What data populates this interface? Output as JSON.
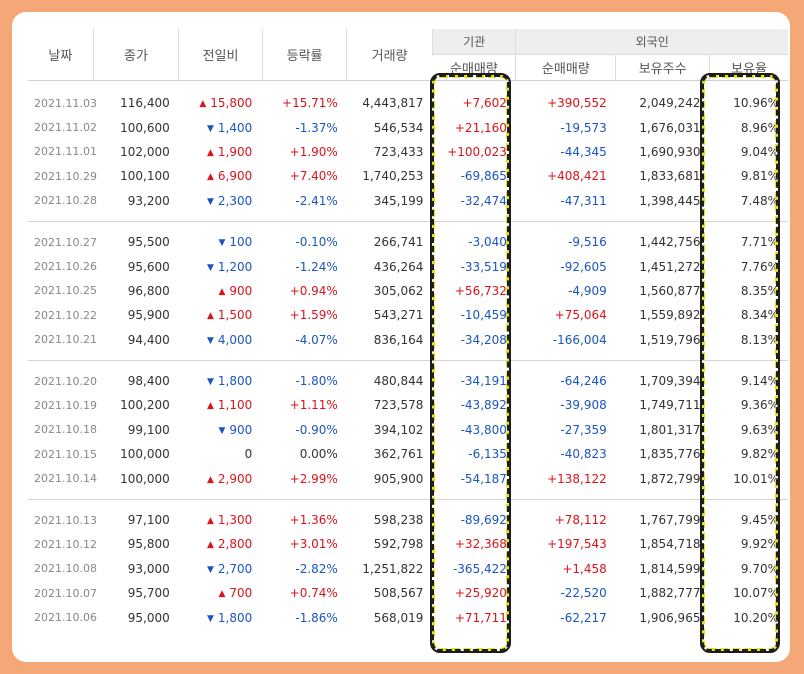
{
  "headers": {
    "date": "날짜",
    "close": "종가",
    "change": "전일비",
    "rate": "등락률",
    "volume": "거래량",
    "institution": "기관",
    "foreign": "외국인",
    "inst_net": "순매매량",
    "foreign_net": "순매매량",
    "foreign_shares": "보유주수",
    "foreign_ratio": "보유율"
  },
  "colors": {
    "up": "#d9141b",
    "down": "#1a55c2",
    "highlight": "#e8e21a",
    "background": "#f4a878"
  },
  "groups": [
    [
      {
        "date": "2021.11.03",
        "close": "116,400",
        "dir": "up",
        "change": "15,800",
        "rate": "+15.71%",
        "volume": "4,443,817",
        "inst": "+7,602",
        "foreign": "+390,552",
        "shares": "2,049,242",
        "ratio": "10.96%"
      },
      {
        "date": "2021.11.02",
        "close": "100,600",
        "dir": "down",
        "change": "1,400",
        "rate": "-1.37%",
        "volume": "546,534",
        "inst": "+21,160",
        "foreign": "-19,573",
        "shares": "1,676,031",
        "ratio": "8.96%"
      },
      {
        "date": "2021.11.01",
        "close": "102,000",
        "dir": "up",
        "change": "1,900",
        "rate": "+1.90%",
        "volume": "723,433",
        "inst": "+100,023",
        "foreign": "-44,345",
        "shares": "1,690,930",
        "ratio": "9.04%"
      },
      {
        "date": "2021.10.29",
        "close": "100,100",
        "dir": "up",
        "change": "6,900",
        "rate": "+7.40%",
        "volume": "1,740,253",
        "inst": "-69,865",
        "foreign": "+408,421",
        "shares": "1,833,681",
        "ratio": "9.81%"
      },
      {
        "date": "2021.10.28",
        "close": "93,200",
        "dir": "down",
        "change": "2,300",
        "rate": "-2.41%",
        "volume": "345,199",
        "inst": "-32,474",
        "foreign": "-47,311",
        "shares": "1,398,445",
        "ratio": "7.48%"
      }
    ],
    [
      {
        "date": "2021.10.27",
        "close": "95,500",
        "dir": "down",
        "change": "100",
        "rate": "-0.10%",
        "volume": "266,741",
        "inst": "-3,040",
        "foreign": "-9,516",
        "shares": "1,442,756",
        "ratio": "7.71%"
      },
      {
        "date": "2021.10.26",
        "close": "95,600",
        "dir": "down",
        "change": "1,200",
        "rate": "-1.24%",
        "volume": "436,264",
        "inst": "-33,519",
        "foreign": "-92,605",
        "shares": "1,451,272",
        "ratio": "7.76%"
      },
      {
        "date": "2021.10.25",
        "close": "96,800",
        "dir": "up",
        "change": "900",
        "rate": "+0.94%",
        "volume": "305,062",
        "inst": "+56,732",
        "foreign": "-4,909",
        "shares": "1,560,877",
        "ratio": "8.35%"
      },
      {
        "date": "2021.10.22",
        "close": "95,900",
        "dir": "up",
        "change": "1,500",
        "rate": "+1.59%",
        "volume": "543,271",
        "inst": "-10,459",
        "foreign": "+75,064",
        "shares": "1,559,892",
        "ratio": "8.34%"
      },
      {
        "date": "2021.10.21",
        "close": "94,400",
        "dir": "down",
        "change": "4,000",
        "rate": "-4.07%",
        "volume": "836,164",
        "inst": "-34,208",
        "foreign": "-166,004",
        "shares": "1,519,796",
        "ratio": "8.13%"
      }
    ],
    [
      {
        "date": "2021.10.20",
        "close": "98,400",
        "dir": "down",
        "change": "1,800",
        "rate": "-1.80%",
        "volume": "480,844",
        "inst": "-34,191",
        "foreign": "-64,246",
        "shares": "1,709,394",
        "ratio": "9.14%"
      },
      {
        "date": "2021.10.19",
        "close": "100,200",
        "dir": "up",
        "change": "1,100",
        "rate": "+1.11%",
        "volume": "723,578",
        "inst": "-43,892",
        "foreign": "-39,908",
        "shares": "1,749,711",
        "ratio": "9.36%"
      },
      {
        "date": "2021.10.18",
        "close": "99,100",
        "dir": "down",
        "change": "900",
        "rate": "-0.90%",
        "volume": "394,102",
        "inst": "-43,800",
        "foreign": "-27,359",
        "shares": "1,801,317",
        "ratio": "9.63%"
      },
      {
        "date": "2021.10.15",
        "close": "100,000",
        "dir": "none",
        "change": "0",
        "rate": "0.00%",
        "volume": "362,761",
        "inst": "-6,135",
        "foreign": "-40,823",
        "shares": "1,835,776",
        "ratio": "9.82%"
      },
      {
        "date": "2021.10.14",
        "close": "100,000",
        "dir": "up",
        "change": "2,900",
        "rate": "+2.99%",
        "volume": "905,900",
        "inst": "-54,187",
        "foreign": "+138,122",
        "shares": "1,872,799",
        "ratio": "10.01%"
      }
    ],
    [
      {
        "date": "2021.10.13",
        "close": "97,100",
        "dir": "up",
        "change": "1,300",
        "rate": "+1.36%",
        "volume": "598,238",
        "inst": "-89,692",
        "foreign": "+78,112",
        "shares": "1,767,799",
        "ratio": "9.45%"
      },
      {
        "date": "2021.10.12",
        "close": "95,800",
        "dir": "up",
        "change": "2,800",
        "rate": "+3.01%",
        "volume": "592,798",
        "inst": "+32,368",
        "foreign": "+197,543",
        "shares": "1,854,718",
        "ratio": "9.92%"
      },
      {
        "date": "2021.10.08",
        "close": "93,000",
        "dir": "down",
        "change": "2,700",
        "rate": "-2.82%",
        "volume": "1,251,822",
        "inst": "-365,422",
        "foreign": "+1,458",
        "shares": "1,814,599",
        "ratio": "9.70%"
      },
      {
        "date": "2021.10.07",
        "close": "95,700",
        "dir": "up",
        "change": "700",
        "rate": "+0.74%",
        "volume": "508,567",
        "inst": "+25,920",
        "foreign": "-22,520",
        "shares": "1,882,777",
        "ratio": "10.07%"
      },
      {
        "date": "2021.10.06",
        "close": "95,000",
        "dir": "down",
        "change": "1,800",
        "rate": "-1.86%",
        "volume": "568,019",
        "inst": "+71,711",
        "foreign": "-62,217",
        "shares": "1,906,965",
        "ratio": "10.20%"
      }
    ]
  ]
}
